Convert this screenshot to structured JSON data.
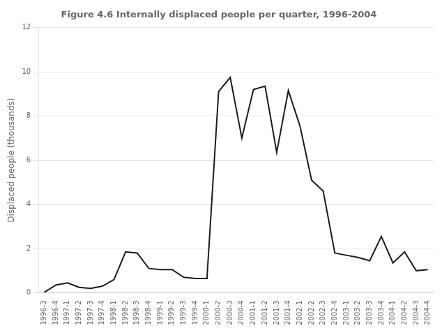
{
  "chart_data": {
    "type": "line",
    "title": "Figure 4.6 Internally displaced people per quarter, 1996-2004",
    "ylabel": "Displaced people (thousands)",
    "categories": [
      "1996-3",
      "1996-4",
      "1997-1",
      "1997-2",
      "1997-3",
      "1997-4",
      "1998-1",
      "1998-2",
      "1998-3",
      "1998-4",
      "1999-1",
      "1999-2",
      "1999-3",
      "1999-4",
      "2000-1",
      "2000-2",
      "2000-3",
      "2000-4",
      "2001-1",
      "2001-2",
      "2001-3",
      "2001-4",
      "2002-1",
      "2002-2",
      "2002-3",
      "2002-4",
      "2003-1",
      "2003-2",
      "2003-3",
      "2003-4",
      "2004-1",
      "2004-2",
      "2004-3",
      "2004-4"
    ],
    "values": [
      0.02,
      0.35,
      0.45,
      0.25,
      0.2,
      0.3,
      0.6,
      1.85,
      1.8,
      1.1,
      1.05,
      1.05,
      0.7,
      0.65,
      0.65,
      9.1,
      9.75,
      7.0,
      9.2,
      9.35,
      6.35,
      9.15,
      7.55,
      5.1,
      4.6,
      1.8,
      1.7,
      1.6,
      1.45,
      2.55,
      1.35,
      1.85,
      1.0,
      1.05
    ],
    "color": "#1a1a1a",
    "ylim": [
      0,
      12
    ],
    "yticks": [
      0,
      2,
      4,
      6,
      8,
      10,
      12
    ],
    "grid": true
  }
}
